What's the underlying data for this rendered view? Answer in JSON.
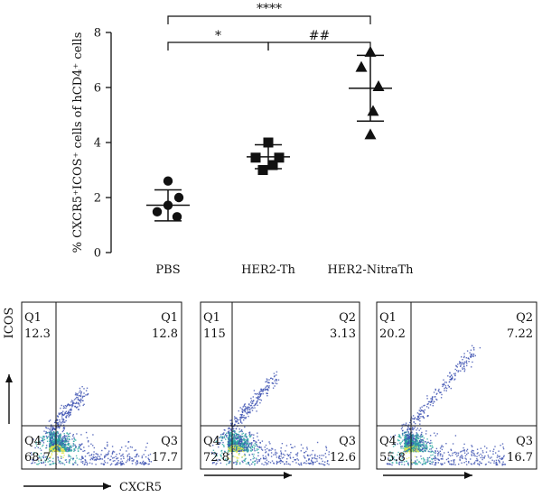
{
  "chart_data": [
    {
      "type": "scatter",
      "ylabel": "% CXCR5⁺ICOS⁺ cells of hCD4⁺ cells",
      "ylim": [
        0,
        8
      ],
      "yticks": [
        0,
        2,
        4,
        6,
        8
      ],
      "categories": [
        "PBS",
        "HER2-Th",
        "HER2-NitraTh"
      ],
      "grid": false,
      "series": [
        {
          "category": "PBS",
          "marker": "circle",
          "points": [
            2.6,
            2.0,
            1.72,
            1.48,
            1.3
          ],
          "mean": 1.72,
          "error_low": 1.15,
          "error_high": 2.28
        },
        {
          "category": "HER2-Th",
          "marker": "square",
          "points": [
            4.0,
            3.45,
            3.45,
            3.18,
            3.0
          ],
          "mean": 3.48,
          "error_low": 3.05,
          "error_high": 3.92
        },
        {
          "category": "HER2-NitraTh",
          "marker": "triangle",
          "points": [
            7.3,
            6.75,
            6.05,
            5.15,
            4.3
          ],
          "mean": 5.97,
          "error_low": 4.78,
          "error_high": 7.17
        }
      ],
      "annotations": [
        {
          "from": "PBS",
          "to": "HER2-NitraTh",
          "text": "****"
        },
        {
          "from": "PBS",
          "to": "HER2-Th",
          "text": "*"
        },
        {
          "from": "HER2-Th",
          "to": "HER2-NitraTh",
          "text": "##"
        }
      ]
    },
    {
      "type": "scatter",
      "subtype": "flow-cytometry-density",
      "xlabel": "CXCR5",
      "ylabel": "ICOS",
      "panels": [
        {
          "Q1": "12.3",
          "Q2": "12.8",
          "Q3": "17.7",
          "Q4": "68.7",
          "labels": {
            "Q1": "Q1",
            "Q2": "Q1",
            "Q3": "Q3",
            "Q4": "Q4"
          }
        },
        {
          "Q1": "115",
          "Q2": "3.13",
          "Q3": "12.6",
          "Q4": "72.8",
          "labels": {
            "Q1": "Q1",
            "Q2": "Q2",
            "Q3": "Q3",
            "Q4": "Q4"
          }
        },
        {
          "Q1": "20.2",
          "Q2": "7.22",
          "Q3": "16.7",
          "Q4": "55.8",
          "labels": {
            "Q1": "Q1",
            "Q2": "Q2",
            "Q3": "Q3",
            "Q4": "Q4"
          }
        }
      ]
    }
  ],
  "colors": {
    "ink": "#111111",
    "density_low": "#3a4fb0",
    "density_mid": "#2aa9a0",
    "density_high": "#e8e84a"
  }
}
